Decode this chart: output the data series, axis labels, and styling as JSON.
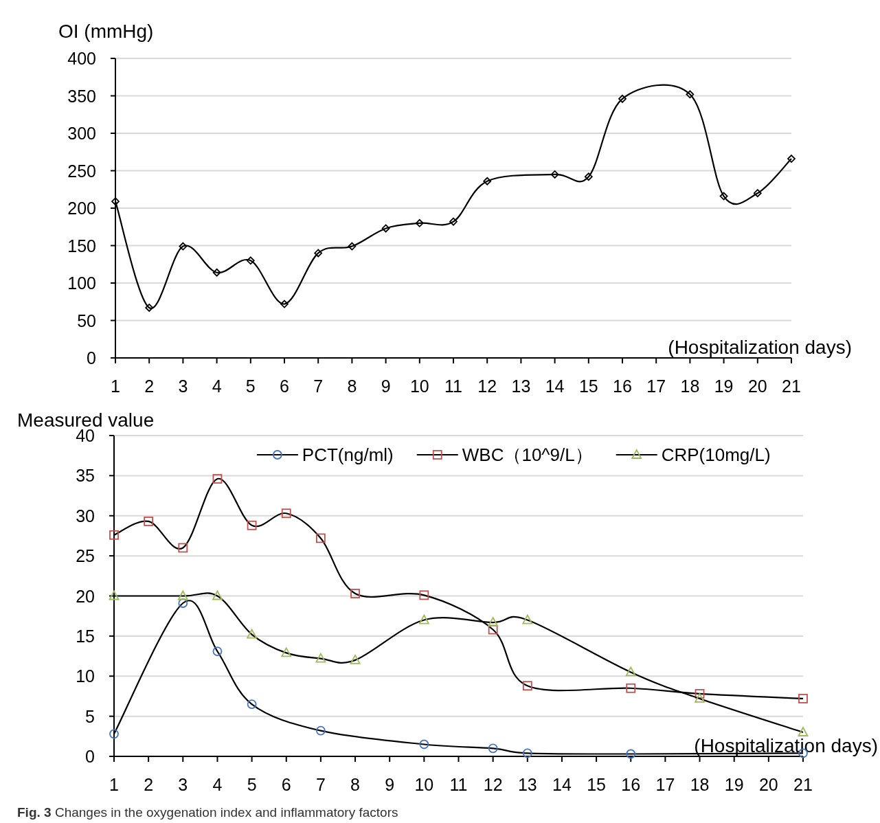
{
  "chart_data": [
    {
      "type": "line",
      "ylabel": "OI  (mmHg)",
      "xlabel": "(Hospitalization days)",
      "xlim": [
        1,
        21
      ],
      "xticks": [
        1,
        2,
        3,
        4,
        5,
        6,
        7,
        8,
        9,
        10,
        11,
        12,
        13,
        14,
        15,
        16,
        17,
        18,
        19,
        20,
        21
      ],
      "ylim": [
        0,
        400
      ],
      "yticks": [
        0,
        50,
        100,
        150,
        200,
        250,
        300,
        350,
        400
      ],
      "grid": "y",
      "marker": "diamond",
      "series": [
        {
          "color": "#000000",
          "x": [
            1,
            2,
            3,
            4,
            5,
            6,
            7,
            8,
            9,
            10,
            11,
            12,
            14,
            15,
            16,
            18,
            19,
            20,
            21
          ],
          "values": [
            209,
            67,
            149,
            114,
            130,
            72,
            140,
            149,
            173,
            180,
            182,
            236,
            245,
            242,
            346,
            352,
            216,
            220,
            266
          ]
        }
      ]
    },
    {
      "type": "line",
      "ylabel": "Measured value",
      "xlabel": "(Hospitalization days)",
      "xlim": [
        1,
        21
      ],
      "xticks": [
        1,
        2,
        3,
        4,
        5,
        6,
        7,
        8,
        9,
        10,
        11,
        12,
        13,
        14,
        15,
        16,
        17,
        18,
        19,
        20,
        21
      ],
      "ylim": [
        0,
        40
      ],
      "yticks": [
        0,
        5,
        10,
        15,
        20,
        25,
        30,
        35,
        40
      ],
      "grid": "y",
      "legend": "top",
      "annotations": [
        "**Fig. 3** Changes in the oxygenation index and inflammatory factors"
      ],
      "series": [
        {
          "name": "PCT(ng/ml)",
          "color": "#4472c4",
          "marker": "circle",
          "x": [
            1,
            3,
            4,
            5,
            7,
            10,
            12,
            13,
            16,
            21
          ],
          "values": [
            2.8,
            19.1,
            13.1,
            6.5,
            3.2,
            1.5,
            1.0,
            0.4,
            0.3,
            0.4
          ]
        },
        {
          "name": "WBC（10^9/L）",
          "color": "#c0504d",
          "marker": "square",
          "x": [
            1,
            2,
            3,
            4,
            5,
            6,
            7,
            8,
            10,
            12,
            13,
            16,
            18,
            21
          ],
          "values": [
            27.6,
            29.3,
            26.0,
            34.6,
            28.8,
            30.3,
            27.2,
            20.3,
            20.1,
            15.8,
            8.8,
            8.5,
            7.8,
            7.2
          ]
        },
        {
          "name": "CRP(10mg/L)",
          "color": "#9bbb59",
          "marker": "triangle",
          "x": [
            1,
            3,
            4,
            5,
            6,
            7,
            8,
            10,
            12,
            13,
            16,
            18,
            21
          ],
          "values": [
            20.0,
            20.0,
            20.0,
            15.2,
            12.9,
            12.2,
            12.0,
            17.0,
            16.7,
            17.0,
            10.5,
            7.2,
            3.0
          ]
        }
      ]
    }
  ]
}
